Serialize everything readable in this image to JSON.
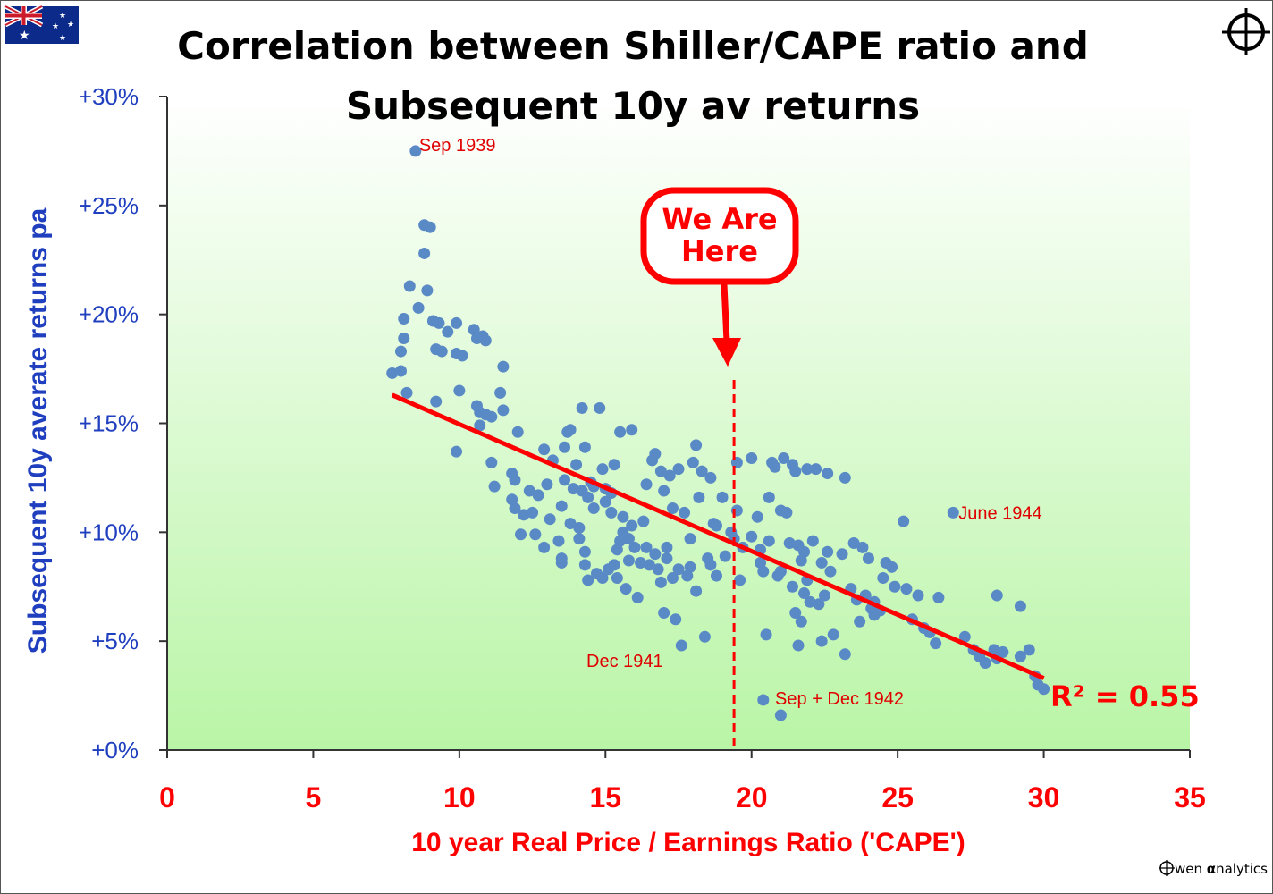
{
  "chart_data": {
    "type": "scatter",
    "title_lines": [
      "Correlation between Shiller/CAPE ratio and",
      "Subsequent 10y av returns"
    ],
    "xlabel": "10 year Real Price / Earnings Ratio ('CAPE')",
    "ylabel": "Subsequent 10y averate returns pa",
    "xlim": [
      0,
      35
    ],
    "ylim": [
      0,
      30
    ],
    "xticks": [
      "0",
      "5",
      "10",
      "15",
      "20",
      "25",
      "30",
      "35"
    ],
    "yticks": [
      "+0%",
      "+5%",
      "+10%",
      "+15%",
      "+20%",
      "+25%",
      "+30%"
    ],
    "grid": false,
    "colors": {
      "points": "#5a8ac6",
      "trend": "#ff0000",
      "axis_y": "#1f3fbf",
      "axis_x": "#ff0000",
      "plot_bg_top": "#ffffff",
      "plot_bg_bottom": "#b9f5a6"
    },
    "trendline": {
      "x": [
        7.7,
        30
      ],
      "y": [
        16.3,
        3.3
      ],
      "r_squared_label": "R² = 0.55"
    },
    "marker": {
      "x": 19.4,
      "label": "We Are Here"
    },
    "annotations": [
      {
        "text": "Sep 1939",
        "x": 8.5,
        "y": 27.5
      },
      {
        "text": "June 1944",
        "x": 26.9,
        "y": 10.9
      },
      {
        "text": "Dec 1941",
        "x": 14.8,
        "y": 4.2
      },
      {
        "text": "Sep + Dec 1942",
        "x": 20.5,
        "y": 2.3
      }
    ],
    "points": [
      [
        8.5,
        27.5
      ],
      [
        8.8,
        24.1
      ],
      [
        9.0,
        24.0
      ],
      [
        8.8,
        22.8
      ],
      [
        8.3,
        21.3
      ],
      [
        8.9,
        21.1
      ],
      [
        8.6,
        20.3
      ],
      [
        8.1,
        19.8
      ],
      [
        8.1,
        18.9
      ],
      [
        8.0,
        18.3
      ],
      [
        8.0,
        17.4
      ],
      [
        7.7,
        17.3
      ],
      [
        8.2,
        16.4
      ],
      [
        9.2,
        16.0
      ],
      [
        9.3,
        19.6
      ],
      [
        9.1,
        19.7
      ],
      [
        9.6,
        19.2
      ],
      [
        9.2,
        18.4
      ],
      [
        9.4,
        18.3
      ],
      [
        9.9,
        19.6
      ],
      [
        9.9,
        18.2
      ],
      [
        10.1,
        18.1
      ],
      [
        10.5,
        19.3
      ],
      [
        10.8,
        19.0
      ],
      [
        10.6,
        18.9
      ],
      [
        10.9,
        18.8
      ],
      [
        10.0,
        16.5
      ],
      [
        10.6,
        15.8
      ],
      [
        10.7,
        15.5
      ],
      [
        10.9,
        15.4
      ],
      [
        11.1,
        15.3
      ],
      [
        10.7,
        14.9
      ],
      [
        11.5,
        17.6
      ],
      [
        11.4,
        16.4
      ],
      [
        11.5,
        15.6
      ],
      [
        9.9,
        13.7
      ],
      [
        11.1,
        13.2
      ],
      [
        11.2,
        12.1
      ],
      [
        11.8,
        12.7
      ],
      [
        12.0,
        14.6
      ],
      [
        11.9,
        12.4
      ],
      [
        11.8,
        11.5
      ],
      [
        11.9,
        11.1
      ],
      [
        12.2,
        10.8
      ],
      [
        12.1,
        9.9
      ],
      [
        12.4,
        11.9
      ],
      [
        12.7,
        11.7
      ],
      [
        12.5,
        10.9
      ],
      [
        12.9,
        13.8
      ],
      [
        13.2,
        13.3
      ],
      [
        13.1,
        10.6
      ],
      [
        12.9,
        9.3
      ],
      [
        13.4,
        9.6
      ],
      [
        13.5,
        8.8
      ],
      [
        13.5,
        8.6
      ],
      [
        13.6,
        12.4
      ],
      [
        13.5,
        11.2
      ],
      [
        13.7,
        14.6
      ],
      [
        13.6,
        13.9
      ],
      [
        13.8,
        14.7
      ],
      [
        14.2,
        15.7
      ],
      [
        14.3,
        13.9
      ],
      [
        14.0,
        13.1
      ],
      [
        14.8,
        15.7
      ],
      [
        14.9,
        12.9
      ],
      [
        14.5,
        12.3
      ],
      [
        14.2,
        11.9
      ],
      [
        14.4,
        11.6
      ],
      [
        14.6,
        11.1
      ],
      [
        13.8,
        10.4
      ],
      [
        14.1,
        9.7
      ],
      [
        14.3,
        9.1
      ],
      [
        14.3,
        8.5
      ],
      [
        14.7,
        8.1
      ],
      [
        14.4,
        7.8
      ],
      [
        14.9,
        7.9
      ],
      [
        15.1,
        8.3
      ],
      [
        15.3,
        13.1
      ],
      [
        15.2,
        11.8
      ],
      [
        15.0,
        11.4
      ],
      [
        15.2,
        10.9
      ],
      [
        15.4,
        9.2
      ],
      [
        15.6,
        10.0
      ],
      [
        15.5,
        14.6
      ],
      [
        15.9,
        14.7
      ],
      [
        15.6,
        10.7
      ],
      [
        15.8,
        9.7
      ],
      [
        15.9,
        10.3
      ],
      [
        15.3,
        8.5
      ],
      [
        15.4,
        7.9
      ],
      [
        15.7,
        7.4
      ],
      [
        16.0,
        9.3
      ],
      [
        16.2,
        8.6
      ],
      [
        16.1,
        7.0
      ],
      [
        16.4,
        9.3
      ],
      [
        16.7,
        9.0
      ],
      [
        16.8,
        8.3
      ],
      [
        16.9,
        7.7
      ],
      [
        16.4,
        12.2
      ],
      [
        16.6,
        13.3
      ],
      [
        16.7,
        13.6
      ],
      [
        16.9,
        12.8
      ],
      [
        17.2,
        12.6
      ],
      [
        17.5,
        12.9
      ],
      [
        17.0,
        11.9
      ],
      [
        17.3,
        11.1
      ],
      [
        17.1,
        9.3
      ],
      [
        17.1,
        8.8
      ],
      [
        17.3,
        7.9
      ],
      [
        17.0,
        6.3
      ],
      [
        17.4,
        6.0
      ],
      [
        17.6,
        4.8
      ],
      [
        17.7,
        10.9
      ],
      [
        17.9,
        9.7
      ],
      [
        17.8,
        8.0
      ],
      [
        18.1,
        7.3
      ],
      [
        18.1,
        14.0
      ],
      [
        18.0,
        13.2
      ],
      [
        18.3,
        12.8
      ],
      [
        18.6,
        12.5
      ],
      [
        18.2,
        11.6
      ],
      [
        18.5,
        8.8
      ],
      [
        18.6,
        8.5
      ],
      [
        18.8,
        8.0
      ],
      [
        18.4,
        5.2
      ],
      [
        18.8,
        10.3
      ],
      [
        19.0,
        11.6
      ],
      [
        19.3,
        10.0
      ],
      [
        19.5,
        13.2
      ],
      [
        19.5,
        11.0
      ],
      [
        19.4,
        9.7
      ],
      [
        19.7,
        9.3
      ],
      [
        19.6,
        7.8
      ],
      [
        20.0,
        13.4
      ],
      [
        20.2,
        10.7
      ],
      [
        20.0,
        9.8
      ],
      [
        20.3,
        8.6
      ],
      [
        20.4,
        8.2
      ],
      [
        20.6,
        11.6
      ],
      [
        20.8,
        13.0
      ],
      [
        20.7,
        13.2
      ],
      [
        20.6,
        9.6
      ],
      [
        20.5,
        5.3
      ],
      [
        20.4,
        2.3
      ],
      [
        21.0,
        1.6
      ],
      [
        21.0,
        11.0
      ],
      [
        21.1,
        13.4
      ],
      [
        21.4,
        13.1
      ],
      [
        21.5,
        12.8
      ],
      [
        21.9,
        12.9
      ],
      [
        22.2,
        12.9
      ],
      [
        22.6,
        12.7
      ],
      [
        23.2,
        12.5
      ],
      [
        21.2,
        10.9
      ],
      [
        21.3,
        9.5
      ],
      [
        21.6,
        9.4
      ],
      [
        21.8,
        9.1
      ],
      [
        22.1,
        9.6
      ],
      [
        21.7,
        8.7
      ],
      [
        21.0,
        8.2
      ],
      [
        21.4,
        7.5
      ],
      [
        21.8,
        7.2
      ],
      [
        22.0,
        6.8
      ],
      [
        22.5,
        7.1
      ],
      [
        21.5,
        6.3
      ],
      [
        21.7,
        5.9
      ],
      [
        21.6,
        4.8
      ],
      [
        22.4,
        5.0
      ],
      [
        22.8,
        5.3
      ],
      [
        22.4,
        8.6
      ],
      [
        22.6,
        9.1
      ],
      [
        23.1,
        9.0
      ],
      [
        23.5,
        9.5
      ],
      [
        23.8,
        9.3
      ],
      [
        24.0,
        8.8
      ],
      [
        23.4,
        7.4
      ],
      [
        23.9,
        7.1
      ],
      [
        24.2,
        6.8
      ],
      [
        24.4,
        6.4
      ],
      [
        24.6,
        8.6
      ],
      [
        24.8,
        8.4
      ],
      [
        24.5,
        7.9
      ],
      [
        23.2,
        4.4
      ],
      [
        23.7,
        5.9
      ],
      [
        24.2,
        6.2
      ],
      [
        25.2,
        10.5
      ],
      [
        25.3,
        7.4
      ],
      [
        25.7,
        7.1
      ],
      [
        26.1,
        5.4
      ],
      [
        26.4,
        7.0
      ],
      [
        26.9,
        10.9
      ],
      [
        27.3,
        5.2
      ],
      [
        27.6,
        4.6
      ],
      [
        28.0,
        4.0
      ],
      [
        28.4,
        4.2
      ],
      [
        28.3,
        4.6
      ],
      [
        28.4,
        7.1
      ],
      [
        29.2,
        6.6
      ],
      [
        29.5,
        4.6
      ],
      [
        29.7,
        3.4
      ],
      [
        29.8,
        3.0
      ],
      [
        30.0,
        2.8
      ],
      [
        29.2,
        4.3
      ],
      [
        12.6,
        9.9
      ],
      [
        13.0,
        12.2
      ],
      [
        13.9,
        12.0
      ],
      [
        14.6,
        12.1
      ],
      [
        15.0,
        12.0
      ],
      [
        15.8,
        8.7
      ],
      [
        16.3,
        10.5
      ],
      [
        17.5,
        8.3
      ],
      [
        17.9,
        8.4
      ],
      [
        19.1,
        8.9
      ],
      [
        20.3,
        9.2
      ],
      [
        21.9,
        7.8
      ],
      [
        22.3,
        6.7
      ],
      [
        23.6,
        6.9
      ],
      [
        24.9,
        7.5
      ],
      [
        25.9,
        5.6
      ],
      [
        26.3,
        4.9
      ],
      [
        27.8,
        4.3
      ],
      [
        28.6,
        4.5
      ],
      [
        14.1,
        10.2
      ],
      [
        15.5,
        9.6
      ],
      [
        16.5,
        8.5
      ],
      [
        18.7,
        10.4
      ],
      [
        20.9,
        8.0
      ],
      [
        22.7,
        8.2
      ],
      [
        24.1,
        6.5
      ],
      [
        25.5,
        6.0
      ]
    ]
  },
  "brand": {
    "text": "wen",
    "alpha": "α",
    "suffix": "nalytics"
  }
}
